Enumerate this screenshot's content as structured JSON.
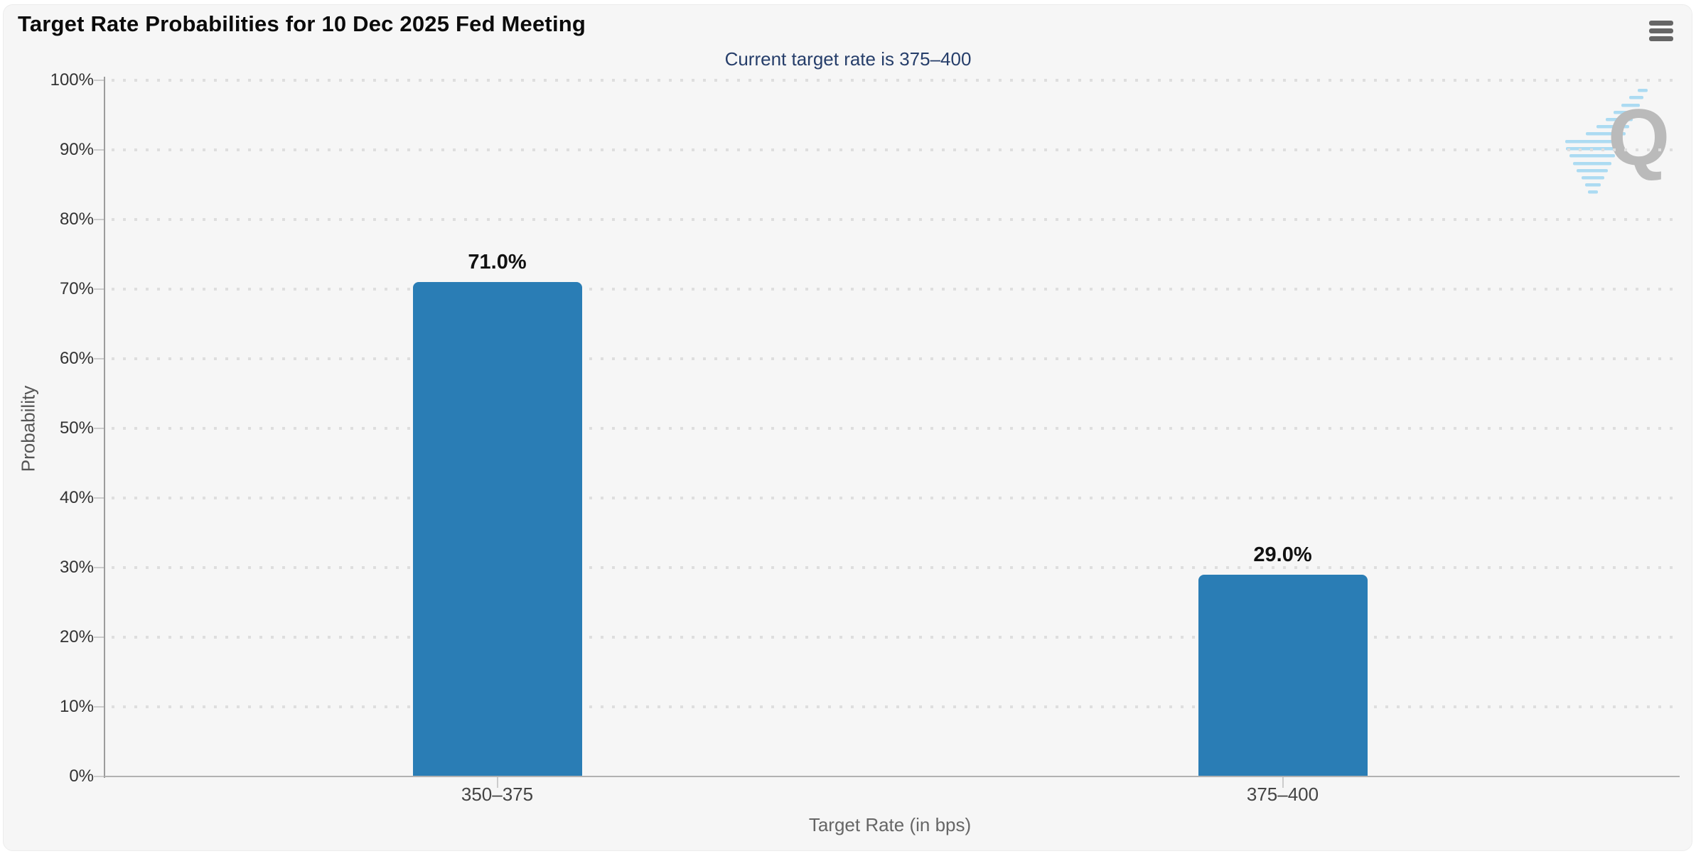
{
  "header": {
    "title": "Target Rate Probabilities for 10 Dec 2025 Fed Meeting"
  },
  "subtitle": "Current target rate is 375–400",
  "icons": {
    "menu": "hamburger-menu-icon",
    "watermark": "quikstrike-q-watermark"
  },
  "watermark": {
    "letter": "Q"
  },
  "chart_data": {
    "type": "bar",
    "title": "Target Rate Probabilities for 10 Dec 2025 Fed Meeting",
    "subtitle": "Current target rate is 375–400",
    "categories": [
      "350–375",
      "375–400"
    ],
    "values": [
      71.0,
      29.0
    ],
    "value_labels": [
      "71.0%",
      "29.0%"
    ],
    "xlabel": "Target Rate (in bps)",
    "ylabel": "Probability",
    "ylim": [
      0,
      100
    ],
    "ytick_step": 10,
    "ytick_labels": [
      "0%",
      "10%",
      "20%",
      "30%",
      "40%",
      "50%",
      "60%",
      "70%",
      "80%",
      "90%",
      "100%"
    ],
    "grid": "dotted horizontal gridlines",
    "legend": null,
    "bar_color": "#2a7db5",
    "subtitle_color": "#263e6a",
    "background_color": "#f6f6f6"
  }
}
